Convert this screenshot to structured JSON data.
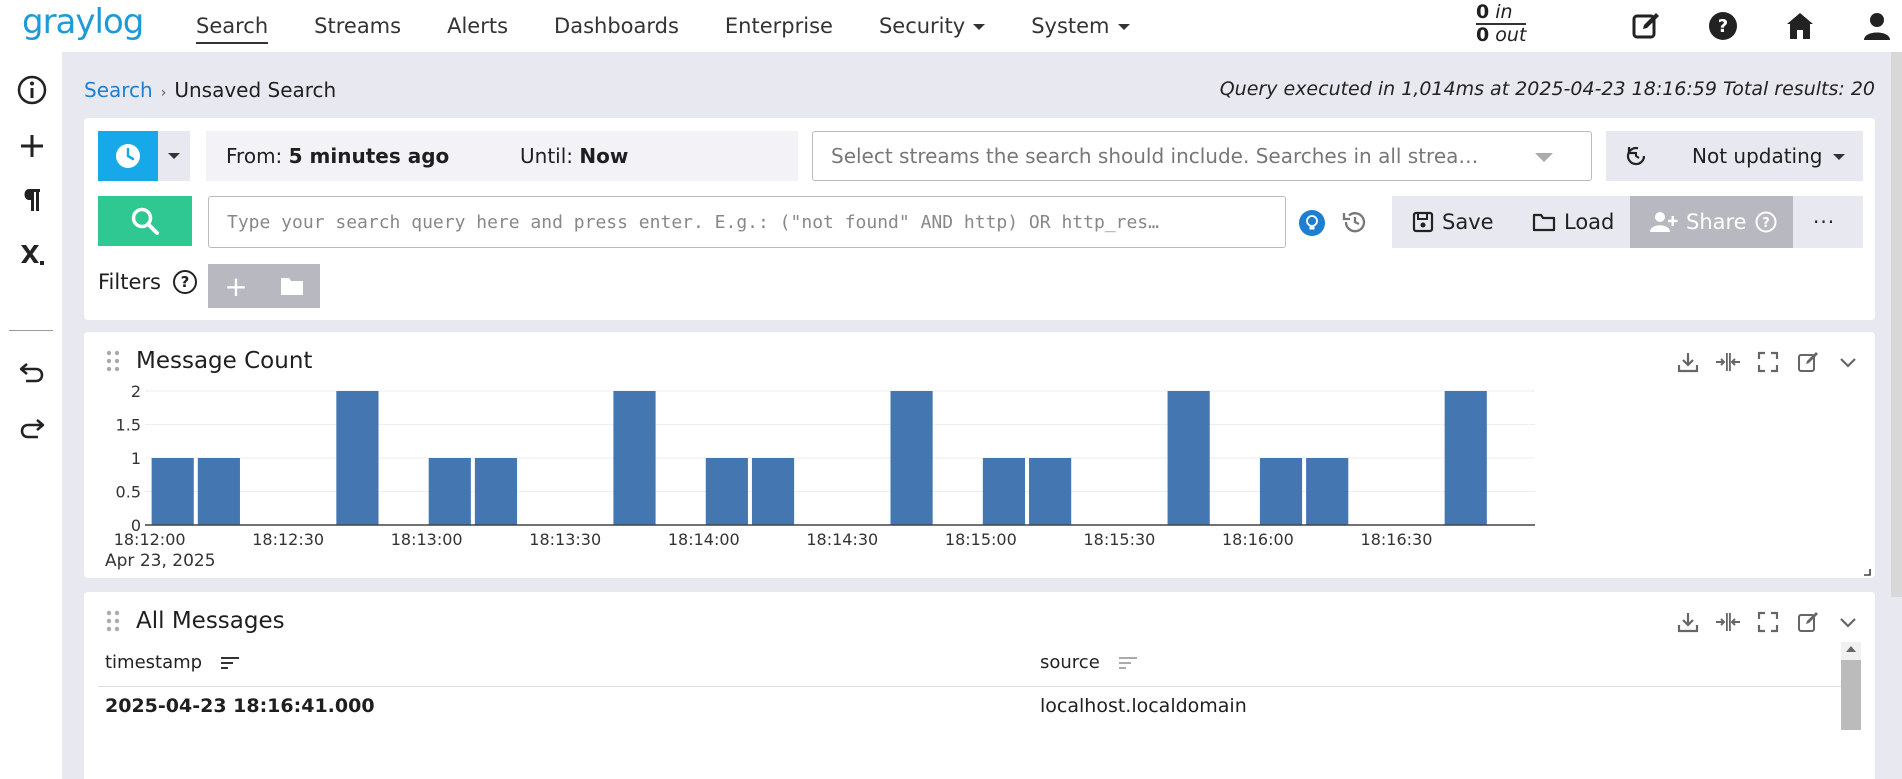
{
  "nav": {
    "logo": "graylog",
    "items": [
      {
        "label": "Search",
        "active": true,
        "dropdown": false
      },
      {
        "label": "Streams",
        "active": false,
        "dropdown": false
      },
      {
        "label": "Alerts",
        "active": false,
        "dropdown": false
      },
      {
        "label": "Dashboards",
        "active": false,
        "dropdown": false
      },
      {
        "label": "Enterprise",
        "active": false,
        "dropdown": false
      },
      {
        "label": "Security",
        "active": false,
        "dropdown": true
      },
      {
        "label": "System",
        "active": false,
        "dropdown": true
      }
    ],
    "throughput": {
      "in_value": "0",
      "in_label": "in",
      "out_value": "0",
      "out_label": "out"
    },
    "icons": [
      "edit-icon",
      "help-icon",
      "home-icon",
      "user-icon"
    ]
  },
  "sidebar": {
    "icons": [
      "info-icon",
      "plus-icon",
      "paragraph-icon",
      "subscript-icon",
      "undo-icon",
      "redo-icon"
    ]
  },
  "breadcrumb": {
    "root": "Search",
    "current": "Unsaved Search"
  },
  "query_info": "Query executed in 1,014ms at 2025-04-23 18:16:59 Total results: 20",
  "search": {
    "from_label": "From:",
    "from_value": "5 minutes ago",
    "until_label": "Until:",
    "until_value": "Now",
    "streams_placeholder": "Select streams the search should include. Searches in all strea…",
    "refresh_label": "Not updating",
    "query_placeholder": "Type your search query here and press enter. E.g.: (\"not found\" AND http) OR http_res…",
    "save_label": "Save",
    "load_label": "Load",
    "share_label": "Share",
    "more_label": "···",
    "filters_label": "Filters",
    "filter_add": "+"
  },
  "message_count": {
    "title": "Message Count",
    "date_label": "Apr 23, 2025"
  },
  "chart_data": {
    "type": "bar",
    "x_ticks": [
      "18:12:00",
      "18:12:30",
      "18:13:00",
      "18:13:30",
      "18:14:00",
      "18:14:30",
      "18:15:00",
      "18:15:30",
      "18:16:00",
      "18:16:30"
    ],
    "y_ticks": [
      "0",
      "0.5",
      "1",
      "1.5",
      "2"
    ],
    "ylim": [
      0,
      2
    ],
    "x_start": "18:11:59",
    "x_end": "18:17:00",
    "bin_seconds": 10,
    "bars": [
      {
        "x": "18:12:00",
        "value": 1
      },
      {
        "x": "18:12:10",
        "value": 1
      },
      {
        "x": "18:12:40",
        "value": 2
      },
      {
        "x": "18:13:00",
        "value": 1
      },
      {
        "x": "18:13:10",
        "value": 1
      },
      {
        "x": "18:13:40",
        "value": 2
      },
      {
        "x": "18:14:00",
        "value": 1
      },
      {
        "x": "18:14:10",
        "value": 1
      },
      {
        "x": "18:14:40",
        "value": 2
      },
      {
        "x": "18:15:00",
        "value": 1
      },
      {
        "x": "18:15:10",
        "value": 1
      },
      {
        "x": "18:15:40",
        "value": 2
      },
      {
        "x": "18:16:00",
        "value": 1
      },
      {
        "x": "18:16:10",
        "value": 1
      },
      {
        "x": "18:16:40",
        "value": 2
      }
    ],
    "bar_color": "#4477b2",
    "grid": true,
    "legend": "none"
  },
  "all_messages": {
    "title": "All Messages",
    "columns": [
      "timestamp",
      "source"
    ],
    "rows": [
      {
        "timestamp": "2025-04-23 18:16:41.000",
        "source": "localhost.localdomain"
      }
    ]
  },
  "colors": {
    "accent": "#16a8e8",
    "search_green": "#2fc792",
    "link": "#1e7fd1",
    "logo": "#1e9bd7"
  }
}
